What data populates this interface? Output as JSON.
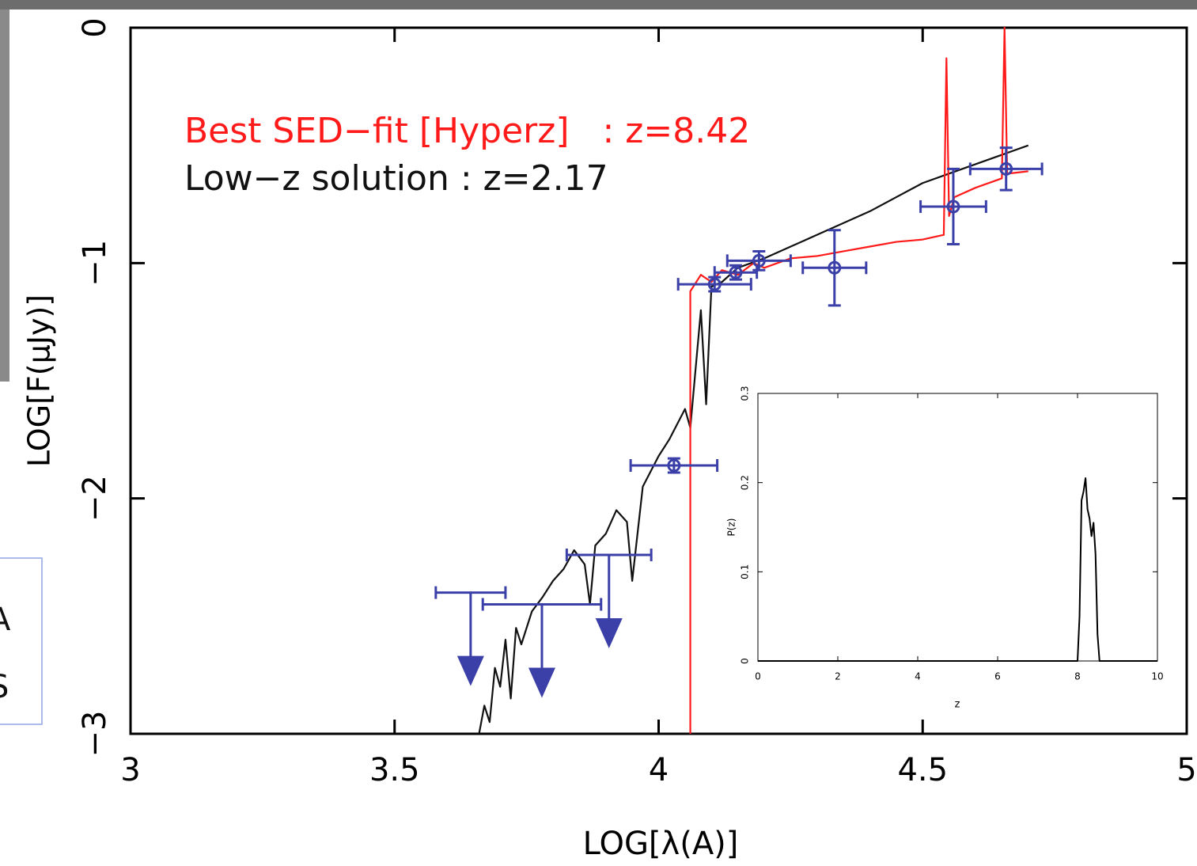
{
  "chart_data": [
    {
      "type": "line",
      "annotations": [
        {
          "text": "Best SED−fit [Hyperz]   : z=8.42",
          "color": "#ff1a1a"
        },
        {
          "text": "Low−z solution : z=2.17",
          "color": "#111111"
        }
      ],
      "xlabel": "LOG[λ(A)]",
      "ylabel": "LOG[F(μJy)]",
      "xlim": [
        3,
        5
      ],
      "ylim": [
        -3,
        0
      ],
      "xticks": [
        3,
        3.5,
        4,
        4.5,
        5
      ],
      "yticks": [
        {
          "value": -3,
          "label": "−3"
        },
        {
          "value": -2,
          "label": "−2"
        },
        {
          "value": -1,
          "label": "−1"
        },
        0
      ],
      "series": [
        {
          "color": "#111111",
          "x": [
            3.66,
            3.67,
            3.68,
            3.69,
            3.7,
            3.71,
            3.72,
            3.73,
            3.74,
            3.76,
            3.78,
            3.8,
            3.82,
            3.84,
            3.86,
            3.87,
            3.88,
            3.9,
            3.92,
            3.94,
            3.95,
            3.97,
            4.0,
            4.02,
            4.05,
            4.06,
            4.07,
            4.08,
            4.09,
            4.1,
            4.12,
            4.15,
            4.2,
            4.25,
            4.3,
            4.35,
            4.4,
            4.45,
            4.5,
            4.55,
            4.6,
            4.65,
            4.7
          ],
          "values": [
            -3.0,
            -2.88,
            -2.95,
            -2.72,
            -2.8,
            -2.6,
            -2.85,
            -2.55,
            -2.62,
            -2.48,
            -2.42,
            -2.35,
            -2.3,
            -2.22,
            -2.28,
            -2.45,
            -2.2,
            -2.15,
            -2.05,
            -2.1,
            -2.35,
            -1.95,
            -1.82,
            -1.75,
            -1.62,
            -1.7,
            -1.45,
            -1.2,
            -1.6,
            -1.1,
            -1.08,
            -1.02,
            -0.98,
            -0.93,
            -0.88,
            -0.83,
            -0.78,
            -0.72,
            -0.66,
            -0.62,
            -0.58,
            -0.54,
            -0.5
          ]
        },
        {
          "color": "#ff1a1a",
          "x": [
            4.06,
            4.06,
            4.08,
            4.1,
            4.12,
            4.15,
            4.18,
            4.2,
            4.25,
            4.3,
            4.35,
            4.4,
            4.45,
            4.5,
            4.54,
            4.545,
            4.55,
            4.56,
            4.6,
            4.65,
            4.655,
            4.66,
            4.7
          ],
          "values": [
            -3.0,
            -1.12,
            -1.05,
            -1.08,
            -1.03,
            -1.05,
            -1.0,
            -1.02,
            -0.98,
            -0.97,
            -0.95,
            -0.93,
            -0.91,
            -0.9,
            -0.88,
            -0.13,
            -0.8,
            -0.72,
            -0.68,
            -0.64,
            0,
            -0.62,
            -0.61
          ]
        }
      ],
      "points": {
        "color": "#3b3fa8",
        "x": [
          3.644,
          3.779,
          3.906,
          4.029,
          4.106,
          4.146,
          4.19,
          4.333,
          4.558,
          4.658
        ],
        "values": [
          -2.4,
          -2.45,
          -2.24,
          -1.86,
          -1.09,
          -1.04,
          -0.99,
          -1.02,
          -0.76,
          -0.6
        ],
        "xerr": [
          0.066,
          0.112,
          0.08,
          0.082,
          0.069,
          0.04,
          0.06,
          0.06,
          0.062,
          0.068
        ],
        "yerr": [
          0,
          0,
          0,
          0.03,
          0.03,
          0.03,
          0.04,
          0.16,
          0.16,
          0.09
        ],
        "upper_limits": [
          true,
          true,
          true,
          false,
          false,
          false,
          false,
          false,
          false,
          false
        ]
      }
    },
    {
      "type": "line",
      "xlabel": "z",
      "ylabel": "P(z)",
      "xlim": [
        0,
        10
      ],
      "ylim": [
        0,
        0.3
      ],
      "xticks": [
        0,
        2,
        4,
        6,
        8,
        10
      ],
      "yticks": [
        0,
        0.1,
        0.2,
        0.3
      ],
      "series": [
        {
          "color": "#000000",
          "x": [
            0,
            8.0,
            8.05,
            8.1,
            8.15,
            8.2,
            8.25,
            8.3,
            8.35,
            8.4,
            8.45,
            8.5,
            8.55,
            10
          ],
          "values": [
            0,
            0,
            0.05,
            0.18,
            0.19,
            0.205,
            0.17,
            0.16,
            0.14,
            0.155,
            0.12,
            0.03,
            0,
            0
          ]
        }
      ]
    }
  ],
  "side_panel": {
    "lines": [
      "A",
      "S"
    ]
  }
}
